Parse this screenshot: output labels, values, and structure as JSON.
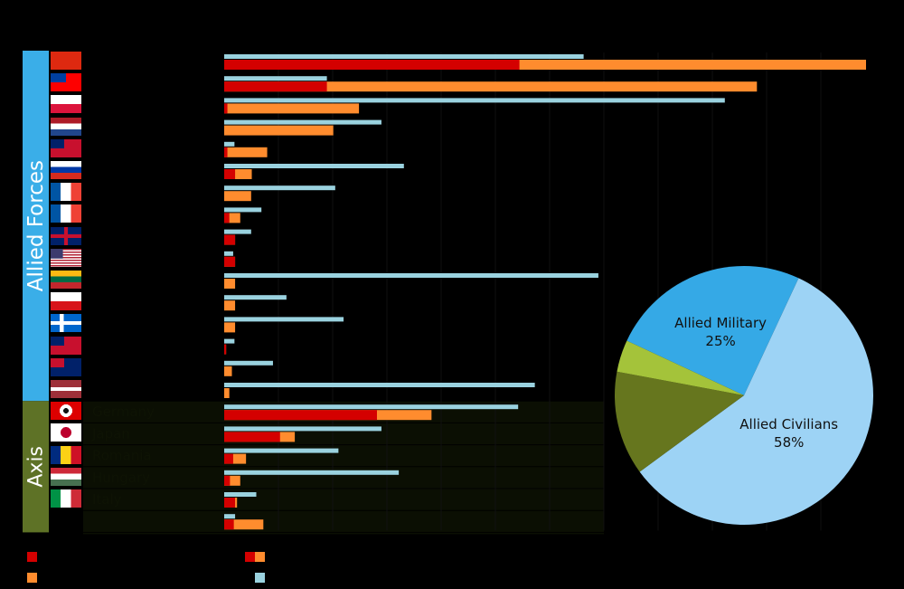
{
  "chart_data": [
    {
      "type": "bar",
      "orientation": "horizontal",
      "title": "",
      "xlabel": "",
      "ylabel": "",
      "grid": true,
      "groups": [
        {
          "label": "Allied Forces",
          "color": "#3aaee8",
          "start": 0,
          "end": 16
        },
        {
          "label": "Axis",
          "color": "#5e7226",
          "start": 16,
          "end": 22
        }
      ],
      "colors": {
        "military": "#d40000",
        "civilian": "#ff8c2e",
        "population": "#9ad2df",
        "axis_row_bg": "#0b0f03",
        "gridline": "#111111"
      },
      "categories": [
        {
          "label": "",
          "flag": "china-flag",
          "population": 0.56,
          "military": 0.46,
          "total": 1.0
        },
        {
          "label": "",
          "flag": "taiwan-flag",
          "population": 0.16,
          "military": 0.16,
          "total": 0.83
        },
        {
          "label": "",
          "flag": "poland-flag",
          "population": 0.78,
          "military": 0.005,
          "total": 0.21
        },
        {
          "label": "",
          "flag": "netherlands-flag",
          "population": 0.245,
          "military": 0.0,
          "total": 0.17
        },
        {
          "label": "",
          "flag": "british-india-flag",
          "population": 0.016,
          "military": 0.005,
          "total": 0.067
        },
        {
          "label": "",
          "flag": "russia-flag",
          "population": 0.28,
          "military": 0.017,
          "total": 0.043
        },
        {
          "label": "",
          "flag": "france-flag",
          "population": 0.173,
          "military": 0.0,
          "total": 0.042
        },
        {
          "label": "",
          "flag": "france-flag",
          "population": 0.058,
          "military": 0.008,
          "total": 0.025
        },
        {
          "label": "",
          "flag": "uk-flag",
          "population": 0.042,
          "military": 0.017,
          "total": 0.017
        },
        {
          "label": "",
          "flag": "usa-flag",
          "population": 0.014,
          "military": 0.017,
          "total": 0.017
        },
        {
          "label": "",
          "flag": "lithuania-flag",
          "population": 0.583,
          "military": 0.0,
          "total": 0.017
        },
        {
          "label": "",
          "flag": "czech-flag",
          "population": 0.097,
          "military": 0.0,
          "total": 0.017
        },
        {
          "label": "",
          "flag": "finland-flag",
          "population": 0.186,
          "military": 0.0,
          "total": 0.017
        },
        {
          "label": "",
          "flag": "bermuda-flag",
          "population": 0.016,
          "military": 0.003,
          "total": 0.003
        },
        {
          "label": "",
          "flag": "australia-flag",
          "population": 0.076,
          "military": 0.0,
          "total": 0.012
        },
        {
          "label": "",
          "flag": "latvia-flag",
          "population": 0.484,
          "military": 0.0,
          "total": 0.008
        },
        {
          "label": "Germany",
          "flag": "nazi-germany-flag",
          "population": 0.458,
          "military": 0.238,
          "total": 0.323
        },
        {
          "label": "Japan",
          "flag": "japan-flag",
          "population": 0.245,
          "military": 0.087,
          "total": 0.11
        },
        {
          "label": "Romania",
          "flag": "romania-flag",
          "population": 0.178,
          "military": 0.014,
          "total": 0.034
        },
        {
          "label": "Hungary",
          "flag": "hungary-flag",
          "population": 0.272,
          "military": 0.009,
          "total": 0.025
        },
        {
          "label": "Italy",
          "flag": "italy-flag",
          "population": 0.05,
          "military": 0.017,
          "total": 0.02
        },
        {
          "label": "",
          "flag": "",
          "population": 0.017,
          "military": 0.015,
          "total": 0.061
        }
      ],
      "legend": [
        {
          "name": "",
          "color": "#d40000"
        },
        {
          "name": "",
          "color": "#ff8c2e"
        },
        {
          "name": "",
          "color": "#d40000"
        },
        {
          "name": "",
          "color": "#ff8c2e"
        },
        {
          "name": "",
          "color": "#9ad2df"
        }
      ]
    },
    {
      "type": "pie",
      "title": "",
      "slices": [
        {
          "label": "Allied Military",
          "value": 25,
          "display": "25%",
          "color": "#35a9e6"
        },
        {
          "label": "Allied Civilians",
          "value": 58,
          "display": "58%",
          "color": "#9dd3f5"
        },
        {
          "label": "",
          "value": 13,
          "display": "",
          "color": "#66761e"
        },
        {
          "label": "",
          "value": 4,
          "display": "",
          "color": "#a4c33a"
        }
      ]
    }
  ]
}
